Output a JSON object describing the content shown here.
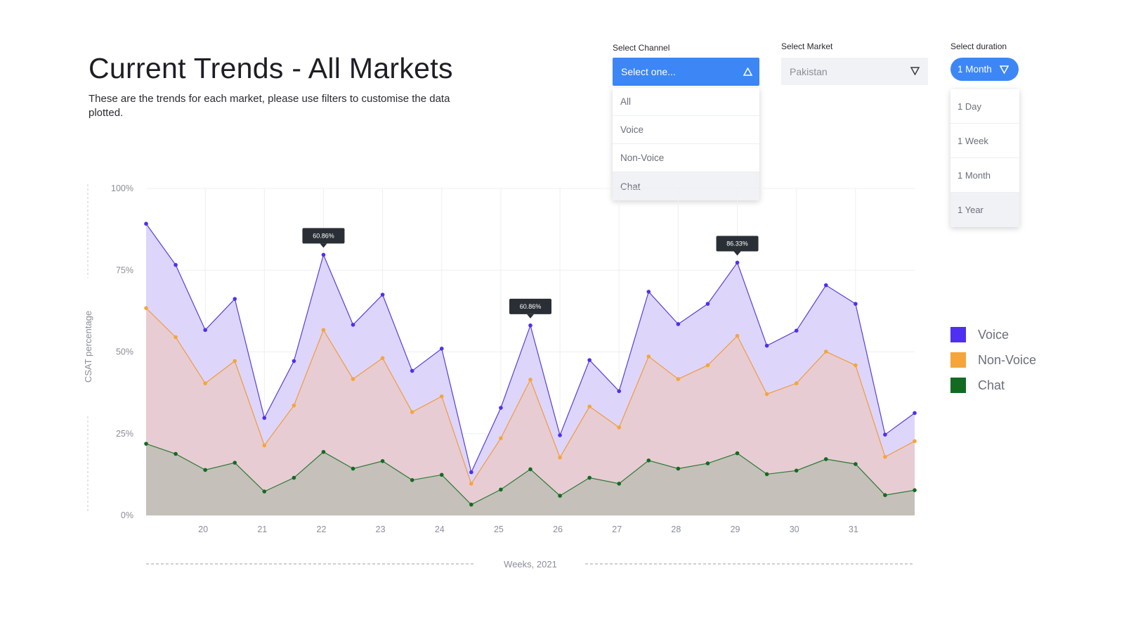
{
  "header": {
    "title": "Current Trends - All Markets",
    "subtitle": "These are the trends for each market, please use filters to customise the data plotted."
  },
  "filters": {
    "channel": {
      "label": "Select Channel",
      "placeholder": "Select one...",
      "options": [
        "All",
        "Voice",
        "Non-Voice",
        "Chat"
      ]
    },
    "market": {
      "label": "Select Market",
      "value": "Pakistan"
    },
    "duration": {
      "label": "Select duration",
      "value": "1 Month",
      "options": [
        "1 Day",
        "1 Week",
        "1 Month",
        "1 Year"
      ]
    }
  },
  "chart_data": {
    "type": "area",
    "ylabel": "CSAT percentage",
    "xlabel": "Weeks, 2021",
    "categories": [
      null,
      null,
      "20",
      null,
      "21",
      null,
      "22",
      null,
      "23",
      null,
      "24",
      null,
      "25",
      null,
      "26",
      null,
      "27",
      null,
      "28",
      null,
      "29",
      null,
      "30",
      null,
      "31",
      null,
      null
    ],
    "series": [
      {
        "name": "Voice",
        "color": "#4f2ff0",
        "values": [
          89.2,
          76.6,
          56.7,
          66.2,
          29.8,
          47.2,
          79.7,
          58.3,
          67.5,
          44.2,
          51.0,
          13.2,
          32.9,
          58.1,
          24.5,
          47.5,
          38.0,
          68.4,
          58.5,
          64.7,
          77.3,
          51.9,
          56.5,
          70.4,
          64.7,
          24.7,
          31.3
        ]
      },
      {
        "name": "Non-Voice",
        "color": "#f5a53a",
        "values": [
          63.4,
          54.5,
          40.4,
          47.2,
          21.4,
          33.6,
          56.7,
          41.7,
          48.1,
          31.6,
          36.4,
          9.7,
          23.6,
          41.5,
          17.7,
          33.3,
          26.9,
          48.6,
          41.7,
          45.9,
          54.9,
          37.1,
          40.4,
          50.1,
          45.9,
          17.9,
          22.7
        ]
      },
      {
        "name": "Chat",
        "color": "#136b22",
        "values": [
          21.9,
          18.8,
          13.9,
          16.1,
          7.3,
          11.5,
          19.4,
          14.3,
          16.6,
          10.8,
          12.4,
          3.3,
          7.9,
          14.1,
          6.0,
          11.5,
          9.7,
          16.8,
          14.3,
          15.9,
          19.0,
          12.6,
          13.7,
          17.2,
          15.7,
          6.2,
          7.7
        ]
      }
    ],
    "annotations": [
      "60.86%",
      "60.86%",
      "86.33%"
    ],
    "ylim": [
      0,
      100
    ],
    "yticks": [
      {
        "value": 0,
        "label": "0%"
      },
      {
        "value": 25,
        "label": "25%"
      },
      {
        "value": 50,
        "label": "50%"
      },
      {
        "value": 75,
        "label": "75%"
      },
      {
        "value": 100,
        "label": "100%"
      }
    ],
    "grid": true,
    "legend": "right"
  }
}
